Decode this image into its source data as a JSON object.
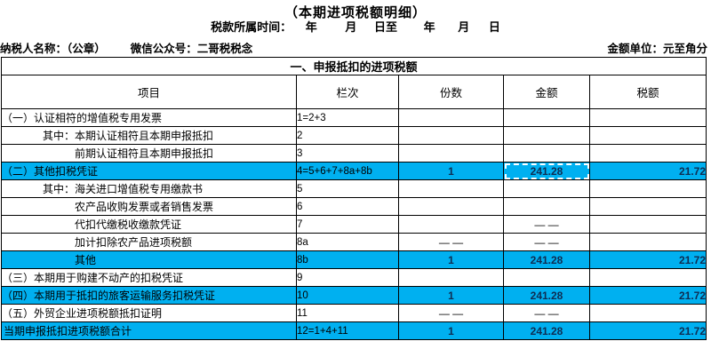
{
  "header": {
    "title": "（本期进项税额明细）",
    "period_label": "税款所属时间：",
    "period_fields": [
      "年",
      "月",
      "日至",
      "年",
      "月",
      "日"
    ],
    "taxpayer_label": "纳税人名称：（公章）",
    "wechat_label": "微信公众号：二哥税税念",
    "unit_label": "金额单位：元至角分"
  },
  "table": {
    "section_title": "一、申报抵扣的进项税额",
    "columns": [
      "项目",
      "栏次",
      "份数",
      "金额",
      "税额"
    ],
    "rows": [
      {
        "item": "（一）认证相符的增值税专用发票",
        "col": "1=2+3",
        "copies": "",
        "amount": "",
        "tax": "",
        "indent": 0,
        "highlight": false,
        "selected": false
      },
      {
        "item": "其中：本期认证相符且本期申报抵扣",
        "col": "2",
        "copies": "",
        "amount": "",
        "tax": "",
        "indent": 1,
        "highlight": false,
        "selected": false
      },
      {
        "item": "前期认证相符且本期申报抵扣",
        "col": "3",
        "copies": "",
        "amount": "",
        "tax": "",
        "indent": 2,
        "highlight": false,
        "selected": false
      },
      {
        "item": "（二）其他扣税凭证",
        "col": "4=5+6+7+8a+8b",
        "copies": "1",
        "amount": "241.28",
        "tax": "21.72",
        "indent": 0,
        "highlight": true,
        "selected": true
      },
      {
        "item": "其中：海关进口增值税专用缴款书",
        "col": "5",
        "copies": "",
        "amount": "",
        "tax": "",
        "indent": 1,
        "highlight": false,
        "selected": false
      },
      {
        "item": "农产品收购发票或者销售发票",
        "col": "6",
        "copies": "",
        "amount": "",
        "tax": "",
        "indent": 2,
        "highlight": false,
        "selected": false
      },
      {
        "item": "代扣代缴税收缴款凭证",
        "col": "7",
        "copies": "",
        "amount": "— —",
        "tax": "",
        "indent": 2,
        "highlight": false,
        "selected": false
      },
      {
        "item": "加计扣除农产品进项税额",
        "col": "8a",
        "copies": "— —",
        "amount": "— —",
        "tax": "",
        "indent": 2,
        "highlight": false,
        "selected": false
      },
      {
        "item": "其他",
        "col": "8b",
        "copies": "1",
        "amount": "241.28",
        "tax": "21.72",
        "indent": 2,
        "highlight": true,
        "selected": false
      },
      {
        "item": "（三）本期用于购建不动产的扣税凭证",
        "col": "9",
        "copies": "",
        "amount": "",
        "tax": "",
        "indent": 0,
        "highlight": false,
        "selected": false
      },
      {
        "item": "（四）本期用于抵扣的旅客运输服务扣税凭证",
        "col": "10",
        "copies": "1",
        "amount": "241.28",
        "tax": "21.72",
        "indent": 0,
        "highlight": true,
        "selected": false
      },
      {
        "item": "（五）外贸企业进项税额抵扣证明",
        "col": "11",
        "copies": "— —",
        "amount": "— —",
        "tax": "",
        "indent": 0,
        "highlight": false,
        "selected": false
      },
      {
        "item": "当期申报抵扣进项税额合计",
        "col": "12=1+4+11",
        "copies": "1",
        "amount": "241.28",
        "tax": "21.72",
        "indent": -1,
        "highlight": true,
        "selected": false
      }
    ]
  },
  "colors": {
    "highlight": "#00b0f0",
    "value_text": "#0f2d52",
    "border": "#000000"
  }
}
